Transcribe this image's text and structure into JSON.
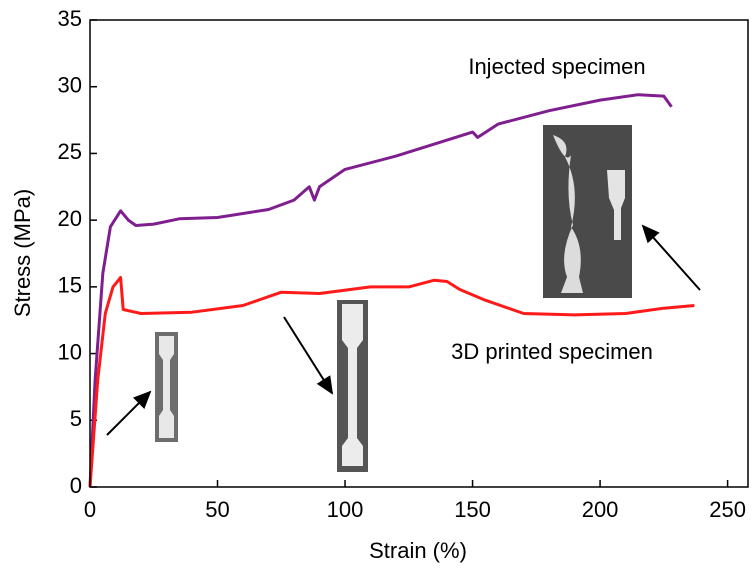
{
  "chart_data": {
    "type": "line",
    "x_label": "Strain (%)",
    "y_label": "Stress (MPa)",
    "xlim": [
      0,
      258
    ],
    "ylim": [
      0,
      35
    ],
    "xticks": [
      0,
      50,
      100,
      150,
      200,
      250
    ],
    "yticks": [
      0,
      5,
      10,
      15,
      20,
      25,
      30,
      35
    ],
    "grid": false,
    "annotations": [
      "Injected specimen",
      "3D printed specimen"
    ],
    "series": [
      {
        "name": "Injected specimen",
        "color": "#7f1f8f",
        "x": [
          0,
          2,
          5,
          8,
          12,
          15,
          18,
          25,
          35,
          50,
          70,
          80,
          86,
          88,
          90,
          100,
          120,
          140,
          150,
          152,
          160,
          180,
          200,
          215,
          225,
          228
        ],
        "values": [
          0,
          8,
          16,
          19.5,
          20.7,
          20,
          19.6,
          19.7,
          20.1,
          20.2,
          20.8,
          21.5,
          22.5,
          21.5,
          22.5,
          23.8,
          24.8,
          26,
          26.6,
          26.2,
          27.2,
          28.2,
          29,
          29.4,
          29.3,
          28.5
        ]
      },
      {
        "name": "3D printed specimen",
        "color": "#ff1a1a",
        "x": [
          0,
          3,
          6,
          9,
          12,
          13,
          20,
          40,
          60,
          75,
          90,
          110,
          125,
          135,
          140,
          145,
          155,
          170,
          190,
          210,
          225,
          237
        ],
        "values": [
          0,
          8,
          13,
          15,
          15.7,
          13.3,
          13,
          13.1,
          13.6,
          14.6,
          14.5,
          15,
          15,
          15.5,
          15.4,
          14.8,
          14,
          13,
          12.9,
          13,
          13.4,
          13.6
        ]
      }
    ]
  }
}
